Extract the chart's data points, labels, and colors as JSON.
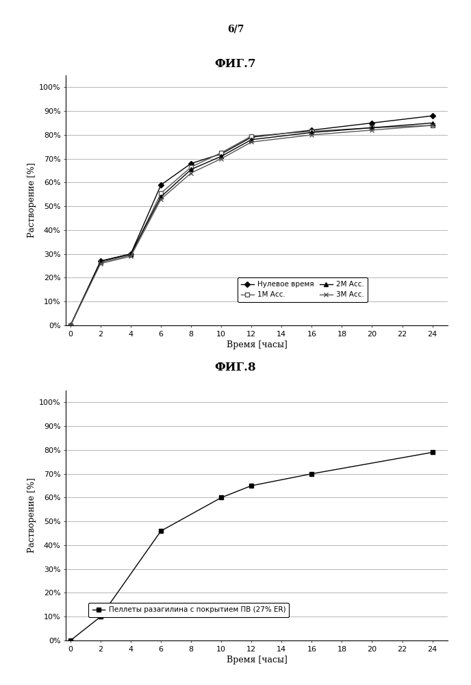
{
  "page_label": "6/7",
  "fig7_title": "ФИГ.7",
  "fig8_title": "ФИГ.8",
  "xlabel": "Время [часы]",
  "ylabel": "Растворение [%]",
  "xticks": [
    0,
    2,
    4,
    6,
    8,
    10,
    12,
    14,
    16,
    18,
    20,
    22,
    24
  ],
  "xlim": [
    0,
    25
  ],
  "ylim": [
    0,
    1.05
  ],
  "yticks": [
    0.0,
    0.1,
    0.2,
    0.3,
    0.4,
    0.5,
    0.6,
    0.7,
    0.8,
    0.9,
    1.0
  ],
  "ytick_labels": [
    "0%",
    "10%",
    "20%",
    "30%",
    "40%",
    "50%",
    "60%",
    "70%",
    "80%",
    "90%",
    "100%"
  ],
  "fig7": {
    "series": [
      {
        "label": "Нулевое время",
        "x": [
          0,
          2,
          4,
          6,
          8,
          10,
          12,
          16,
          20,
          24
        ],
        "y": [
          0,
          0.27,
          0.3,
          0.59,
          0.68,
          0.72,
          0.79,
          0.82,
          0.85,
          0.88
        ],
        "marker": "D",
        "markersize": 4,
        "linestyle": "-",
        "color": "#000000",
        "markerfacecolor": "#000000"
      },
      {
        "label": "1М Асс.",
        "x": [
          0,
          2,
          4,
          6,
          8,
          10,
          12,
          16,
          20,
          24
        ],
        "y": [
          0,
          0.265,
          0.295,
          0.555,
          0.665,
          0.725,
          0.795,
          0.815,
          0.83,
          0.84
        ],
        "marker": "s",
        "markersize": 4,
        "linestyle": "-",
        "color": "#555555",
        "markerfacecolor": "#ffffff"
      },
      {
        "label": "2М Асс.",
        "x": [
          0,
          2,
          4,
          6,
          8,
          10,
          12,
          16,
          20,
          24
        ],
        "y": [
          0,
          0.27,
          0.3,
          0.54,
          0.655,
          0.71,
          0.78,
          0.81,
          0.83,
          0.85
        ],
        "marker": "^",
        "markersize": 4,
        "linestyle": "-",
        "color": "#000000",
        "markerfacecolor": "#000000"
      },
      {
        "label": "3М Асс.",
        "x": [
          0,
          2,
          4,
          6,
          8,
          10,
          12,
          16,
          20,
          24
        ],
        "y": [
          0,
          0.26,
          0.29,
          0.53,
          0.64,
          0.7,
          0.77,
          0.8,
          0.82,
          0.84
        ],
        "marker": "x",
        "markersize": 5,
        "linestyle": "-",
        "color": "#555555",
        "markerfacecolor": "#555555"
      }
    ]
  },
  "fig8": {
    "series": [
      {
        "label": "Пеллеты разагилина с покрытием ПВ (27% ER)",
        "x": [
          0,
          2,
          6,
          10,
          12,
          16,
          24
        ],
        "y": [
          0,
          0.1,
          0.46,
          0.6,
          0.65,
          0.7,
          0.79
        ],
        "marker": "s",
        "markersize": 4,
        "linestyle": "-",
        "color": "#000000",
        "markerfacecolor": "#000000"
      }
    ]
  },
  "bg_color": "#ffffff",
  "grid_color": "#999999",
  "legend_fontsize": 7.5,
  "axis_fontsize": 9,
  "tick_fontsize": 8,
  "title_fontsize": 12,
  "page_label_fontsize": 10
}
